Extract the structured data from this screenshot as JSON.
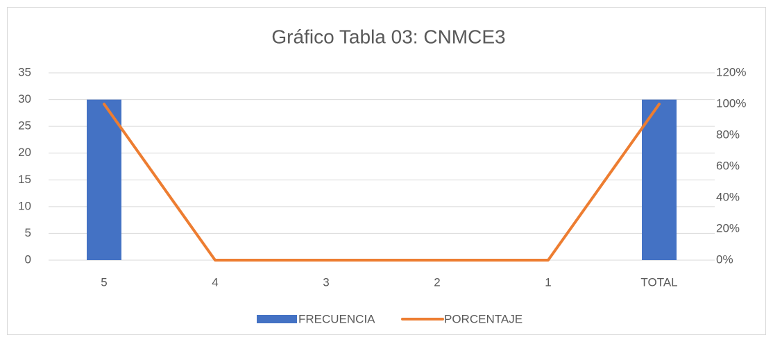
{
  "chart_data": {
    "type": "combo",
    "title": "Gráfico Tabla 03: CNMCE3",
    "categories": [
      "5",
      "4",
      "3",
      "2",
      "1",
      "TOTAL"
    ],
    "series": [
      {
        "name": "FRECUENCIA",
        "type": "bar",
        "color": "#4472c4",
        "values": [
          30,
          0,
          0,
          0,
          0,
          30
        ]
      },
      {
        "name": "PORCENTAJE",
        "type": "line",
        "axis": "y2",
        "color": "#ed7d31",
        "values": [
          100,
          0,
          0,
          0,
          0,
          100
        ]
      }
    ],
    "ylim": [
      0,
      35
    ],
    "yticks": [
      0,
      5,
      10,
      15,
      20,
      25,
      30,
      35
    ],
    "y2lim": [
      0,
      120
    ],
    "y2ticks": [
      {
        "value": 0,
        "label": "0%"
      },
      {
        "value": 20,
        "label": "20%"
      },
      {
        "value": 40,
        "label": "40%"
      },
      {
        "value": 60,
        "label": "60%"
      },
      {
        "value": 80,
        "label": "80%"
      },
      {
        "value": 100,
        "label": "100%"
      },
      {
        "value": 120,
        "label": "120%"
      }
    ],
    "grid": true,
    "legend": "bottom"
  }
}
